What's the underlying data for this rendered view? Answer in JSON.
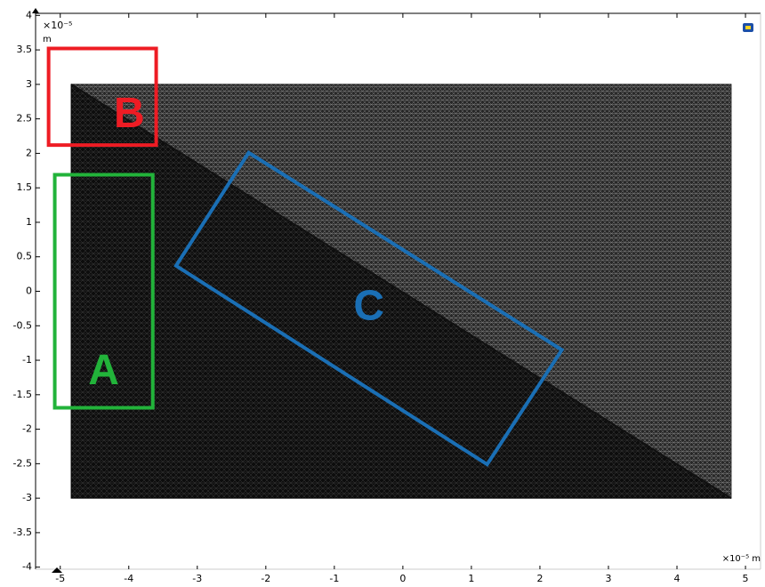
{
  "chart_data": {
    "type": "mesh",
    "x_scale": "×10⁻⁵ m",
    "y_scale": "×10⁻⁵",
    "y_unit": "m",
    "xlim": [
      -5.36,
      5.22
    ],
    "ylim": [
      -4.03,
      4.03
    ],
    "xticks": [
      -5,
      -4,
      -3,
      -2,
      -1,
      0,
      1,
      2,
      3,
      4,
      5
    ],
    "yticks": [
      4,
      3.5,
      3,
      2.5,
      2,
      1.5,
      1,
      0.5,
      0,
      -0.5,
      -1,
      -1.5,
      -2,
      -2.5,
      -3,
      -3.5,
      -4
    ],
    "domain": {
      "x": [
        -4.84,
        4.79
      ],
      "y": [
        -3,
        3
      ]
    },
    "annotations": [
      {
        "label": "A",
        "color": "#22b33a",
        "points": [
          [
            -5.08,
            1.69
          ],
          [
            -3.65,
            1.69
          ],
          [
            -3.65,
            -1.69
          ],
          [
            -5.08,
            -1.69
          ]
        ]
      },
      {
        "label": "B",
        "color": "#ee1c24",
        "points": [
          [
            -5.17,
            3.52
          ],
          [
            -3.6,
            3.52
          ],
          [
            -3.6,
            2.12
          ],
          [
            -5.17,
            2.12
          ]
        ]
      },
      {
        "label": "C",
        "color": "#1a6fb5",
        "points": [
          [
            -2.25,
            2.01
          ],
          [
            2.32,
            -0.85
          ],
          [
            1.23,
            -2.51
          ],
          [
            -3.31,
            0.37
          ]
        ]
      }
    ]
  }
}
